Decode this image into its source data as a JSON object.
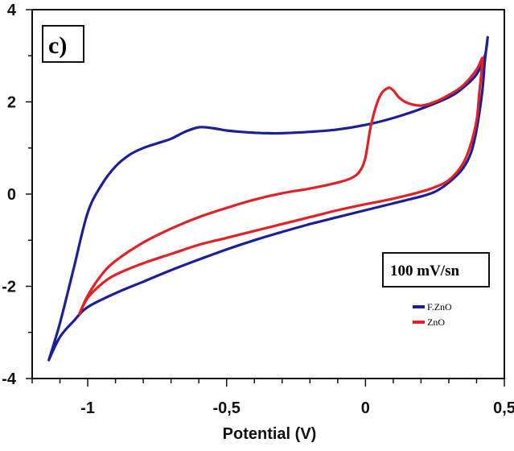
{
  "chart_data": {
    "type": "line",
    "title": "",
    "panel_label": "c)",
    "annotation": "100 mV/sn",
    "xlabel": "Potential (V)",
    "ylabel": "",
    "xlim": [
      -1.2,
      0.5
    ],
    "ylim": [
      -4,
      4
    ],
    "xticks": [
      -1,
      -0.5,
      0,
      0.5
    ],
    "xtick_labels": [
      "-1",
      "-0,5",
      "0",
      "0,5"
    ],
    "yticks": [
      -4,
      -2,
      0,
      2,
      4
    ],
    "ytick_labels": [
      "-4",
      "-2",
      "0",
      "2",
      "4"
    ],
    "grid": false,
    "legend_position": "right",
    "series": [
      {
        "name": "F.ZnO",
        "color": "#1b1f9a",
        "x": [
          -1.14,
          -1.1,
          -1.05,
          -1.0,
          -0.95,
          -0.9,
          -0.85,
          -0.8,
          -0.75,
          -0.7,
          -0.65,
          -0.6,
          -0.55,
          -0.5,
          -0.45,
          -0.4,
          -0.35,
          -0.3,
          -0.2,
          -0.1,
          0.0,
          0.1,
          0.2,
          0.3,
          0.35,
          0.4,
          0.43,
          0.44,
          0.43,
          0.42,
          0.4,
          0.38,
          0.35,
          0.3,
          0.25,
          0.2,
          0.1,
          0.0,
          -0.1,
          -0.2,
          -0.3,
          -0.4,
          -0.5,
          -0.6,
          -0.7,
          -0.8,
          -0.9,
          -1.0,
          -1.05,
          -1.1,
          -1.14
        ],
        "y": [
          -3.6,
          -2.8,
          -1.6,
          -0.4,
          0.2,
          0.6,
          0.85,
          1.0,
          1.1,
          1.2,
          1.35,
          1.45,
          1.43,
          1.38,
          1.35,
          1.33,
          1.32,
          1.32,
          1.35,
          1.4,
          1.5,
          1.65,
          1.85,
          2.1,
          2.3,
          2.6,
          3.0,
          3.4,
          2.9,
          2.2,
          1.4,
          0.9,
          0.55,
          0.25,
          0.05,
          -0.05,
          -0.2,
          -0.35,
          -0.5,
          -0.65,
          -0.82,
          -1.0,
          -1.2,
          -1.42,
          -1.65,
          -1.9,
          -2.15,
          -2.45,
          -2.75,
          -3.1,
          -3.6
        ]
      },
      {
        "name": "ZnO",
        "color": "#e02126",
        "x": [
          -1.03,
          -1.0,
          -0.95,
          -0.9,
          -0.8,
          -0.7,
          -0.6,
          -0.5,
          -0.4,
          -0.3,
          -0.2,
          -0.1,
          -0.05,
          -0.02,
          0.0,
          0.02,
          0.05,
          0.08,
          0.1,
          0.12,
          0.15,
          0.2,
          0.25,
          0.3,
          0.35,
          0.4,
          0.42,
          0.42,
          0.41,
          0.4,
          0.38,
          0.35,
          0.3,
          0.25,
          0.2,
          0.1,
          0.0,
          -0.1,
          -0.2,
          -0.3,
          -0.4,
          -0.5,
          -0.6,
          -0.7,
          -0.8,
          -0.9,
          -0.95,
          -1.0,
          -1.03
        ],
        "y": [
          -2.6,
          -2.2,
          -1.75,
          -1.45,
          -1.05,
          -0.75,
          -0.5,
          -0.3,
          -0.12,
          0.02,
          0.12,
          0.25,
          0.35,
          0.5,
          0.8,
          1.5,
          2.1,
          2.3,
          2.25,
          2.1,
          1.98,
          1.92,
          2.0,
          2.15,
          2.35,
          2.7,
          2.95,
          2.8,
          2.2,
          1.6,
          1.1,
          0.65,
          0.3,
          0.15,
          0.05,
          -0.1,
          -0.22,
          -0.35,
          -0.5,
          -0.65,
          -0.8,
          -0.95,
          -1.1,
          -1.3,
          -1.5,
          -1.75,
          -1.95,
          -2.25,
          -2.6
        ]
      }
    ]
  }
}
